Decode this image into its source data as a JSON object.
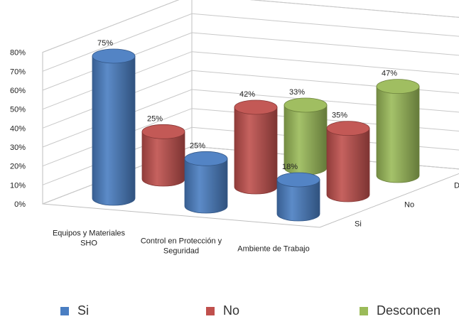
{
  "chart_data": {
    "type": "bar",
    "style": "3d-cylinder",
    "categories": [
      "Equipos y Materiales SHO",
      "Control en Protección y Seguridad",
      "Ambiente de Trabajo"
    ],
    "series": [
      {
        "name": "Si",
        "values": [
          75,
          25,
          18
        ],
        "labels": [
          "75%",
          "25%",
          "18%"
        ],
        "color": "#4a7ec2"
      },
      {
        "name": "No",
        "values": [
          25,
          42,
          35
        ],
        "labels": [
          "25%",
          "42%",
          "35%"
        ],
        "color": "#c0504d"
      },
      {
        "name": "Desconcen",
        "values": [
          null,
          33,
          47
        ],
        "labels": [
          "",
          "33%",
          "47%"
        ],
        "color": "#9bbb59"
      }
    ],
    "yticks": [
      "0%",
      "10%",
      "20%",
      "30%",
      "40%",
      "50%",
      "60%",
      "70%",
      "80%"
    ],
    "ylim": [
      0,
      80
    ],
    "grid": true,
    "legend": "bottom"
  }
}
